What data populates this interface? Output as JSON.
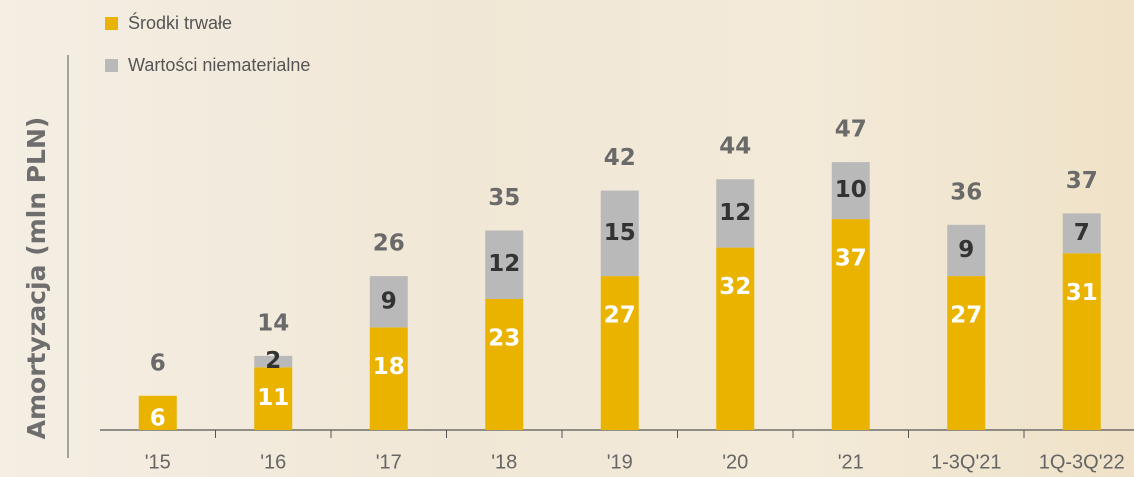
{
  "chart_data": {
    "type": "stacked-bar",
    "y_label": "Amortyzacja (mln PLN)",
    "categories": [
      "'15",
      "'16",
      "'17",
      "'18",
      "'19",
      "'20",
      "'21",
      "1-3Q'21",
      "1Q-3Q'22"
    ],
    "series": [
      {
        "name": "Środki trwałe",
        "color": "#e9b300",
        "values": [
          6,
          11,
          18,
          23,
          27,
          32,
          37,
          27,
          31
        ]
      },
      {
        "name": "Wartości niematerialne",
        "color": "#b9b9b9",
        "values": [
          null,
          2,
          9,
          12,
          15,
          12,
          10,
          9,
          7
        ]
      }
    ],
    "totals": [
      6,
      14,
      26,
      35,
      42,
      44,
      47,
      36,
      37
    ]
  }
}
